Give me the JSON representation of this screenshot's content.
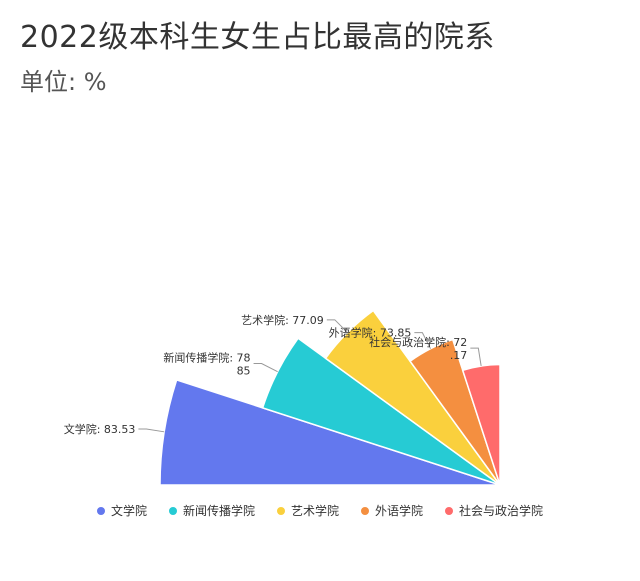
{
  "title": "2022级本科生女生占比最高的院系",
  "subtitle": "单位: %",
  "chart_data": {
    "type": "pie",
    "variant": "quarter-rose",
    "unit": "%",
    "categories": [
      "文学院",
      "新闻传播学院",
      "艺术学院",
      "外语学院",
      "社会与政治学院"
    ],
    "values": [
      83.53,
      78.85,
      77.09,
      73.85,
      72.17
    ],
    "labels": [
      [
        "文学院: 83.53"
      ],
      [
        "新闻传播学院: 78",
        "85"
      ],
      [
        "艺术学院: 77.09"
      ],
      [
        "外语学院: 73.85"
      ],
      [
        "社会与政治学院: 72",
        ".17"
      ]
    ],
    "colors": [
      "#6378EE",
      "#26CBD4",
      "#FAD03D",
      "#F48F40",
      "#FF6B6B"
    ],
    "legend_position": "bottom"
  },
  "legend": {
    "items": [
      "文学院",
      "新闻传播学院",
      "艺术学院",
      "外语学院",
      "社会与政治学院"
    ]
  }
}
